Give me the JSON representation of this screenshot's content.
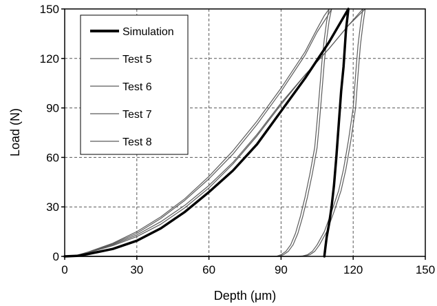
{
  "chart_data": {
    "type": "line",
    "xlabel": "Depth (μm)",
    "ylabel": "Load (N)",
    "xlim": [
      0,
      150
    ],
    "ylim": [
      0,
      150
    ],
    "xticks": [
      0,
      30,
      60,
      90,
      120,
      150
    ],
    "yticks": [
      0,
      30,
      60,
      90,
      120,
      150
    ],
    "x_tick_labels": [
      "0",
      "30",
      "60",
      "90",
      "120",
      "150"
    ],
    "y_tick_labels": [
      "0",
      "30",
      "60",
      "90",
      "120",
      "150"
    ],
    "grid": true,
    "legend_position": "top-left",
    "series": [
      {
        "name": "Simulation",
        "color": "#000000",
        "style": "thick",
        "x": [
          0,
          5,
          10,
          20,
          30,
          40,
          50,
          60,
          70,
          80,
          90,
          100,
          110,
          118,
          118,
          117,
          116,
          115,
          114,
          113,
          112,
          111,
          110,
          109,
          108.5,
          108
        ],
        "y": [
          0,
          0.3,
          1.5,
          4.5,
          9.5,
          17,
          27,
          39,
          52,
          68,
          88,
          108,
          130,
          150,
          150,
          137,
          115,
          100,
          80,
          60,
          43,
          30,
          20,
          12,
          6,
          0
        ]
      },
      {
        "name": "Test 5",
        "color": "#5a5a5a",
        "style": "thin",
        "x": [
          0,
          5,
          10,
          20,
          30,
          40,
          50,
          60,
          70,
          80,
          90,
          100,
          110,
          118,
          125,
          125,
          124,
          123,
          122,
          121,
          119,
          117,
          115,
          112,
          109,
          106,
          104,
          102,
          100,
          98,
          0
        ],
        "y": [
          0,
          0.5,
          2.5,
          7,
          13,
          21,
          31,
          43,
          57,
          74,
          93,
          110,
          126,
          140,
          150,
          150,
          140,
          128,
          110,
          90,
          70,
          53,
          40,
          27,
          15,
          7,
          3,
          1,
          0.3,
          0,
          0
        ]
      },
      {
        "name": "Test 6",
        "color": "#5a5a5a",
        "style": "thin",
        "x": [
          0,
          5,
          10,
          20,
          30,
          40,
          50,
          60,
          70,
          80,
          90,
          100,
          110,
          118,
          124,
          124,
          123,
          122,
          121,
          120,
          118,
          116,
          114,
          111,
          108,
          105,
          103,
          101,
          99,
          97,
          0
        ],
        "y": [
          0,
          0.5,
          2.3,
          6.5,
          12,
          19.5,
          29.5,
          41.5,
          56,
          73,
          92,
          110,
          126,
          140,
          150,
          150,
          140,
          128,
          110,
          90,
          70,
          53,
          40,
          27,
          15,
          7,
          3,
          1,
          0.3,
          0,
          0
        ]
      },
      {
        "name": "Test 7",
        "color": "#5a5a5a",
        "style": "thin",
        "x": [
          0,
          5,
          10,
          20,
          30,
          40,
          50,
          60,
          70,
          80,
          90,
          100,
          105,
          109,
          111,
          111,
          110,
          109,
          108,
          107,
          106,
          105,
          103,
          101,
          99,
          97,
          95,
          93,
          91,
          89,
          0
        ],
        "y": [
          0,
          0.6,
          2.6,
          7.5,
          14,
          23,
          34,
          47,
          62,
          80,
          100,
          122,
          136,
          145,
          150,
          150,
          143,
          132,
          118,
          100,
          82,
          66,
          50,
          36,
          24,
          14,
          7,
          3,
          1,
          0,
          0
        ]
      },
      {
        "name": "Test 8",
        "color": "#5a5a5a",
        "style": "thin",
        "x": [
          0,
          5,
          10,
          20,
          30,
          40,
          50,
          60,
          70,
          80,
          90,
          100,
          105,
          108,
          110,
          110,
          109,
          108,
          107,
          106,
          105,
          104,
          102,
          100,
          98,
          96,
          94,
          92,
          90,
          88,
          0
        ],
        "y": [
          0,
          0.6,
          2.8,
          8,
          15,
          24,
          35,
          48.5,
          64,
          82,
          102,
          124,
          138,
          146,
          150,
          150,
          143,
          132,
          118,
          100,
          82,
          66,
          50,
          36,
          24,
          14,
          7,
          3,
          1,
          0,
          0
        ]
      }
    ]
  }
}
